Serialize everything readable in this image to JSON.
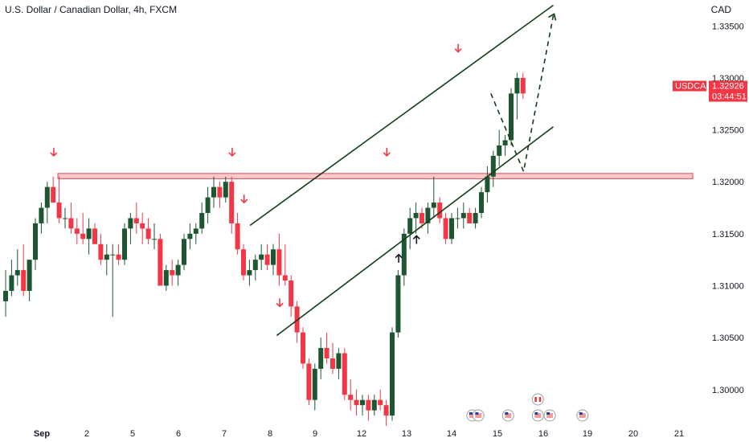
{
  "header": {
    "symbol_title": "U.S. Dollar / Canadian Dollar, 4h, FXCM",
    "currency": "CAD"
  },
  "colors": {
    "up": "#1e5631",
    "down": "#f23645",
    "zone_fill": "#f8c9cd",
    "zone_stroke": "#e0424f",
    "channel": "#0f3d17",
    "axis_text": "#131722"
  },
  "chart_data": {
    "type": "candlestick",
    "symbol": "USDCAD",
    "interval": "4h",
    "price_tag": {
      "label": "USDCAD",
      "price": "1.32926",
      "countdown": "03:44:51"
    },
    "y_axis": {
      "ticks": [
        "1.33500",
        "1.33000",
        "1.32500",
        "1.32000",
        "1.31500",
        "1.31000",
        "1.30500",
        "1.30000"
      ],
      "range": [
        1.2965,
        1.3375
      ]
    },
    "x_axis": {
      "labels": [
        "Sep",
        "2",
        "5",
        "6",
        "7",
        "8",
        "9",
        "12",
        "13",
        "14",
        "15",
        "16",
        "19",
        "20",
        "21"
      ]
    },
    "candles": [
      [
        1.3085,
        1.3115,
        1.307,
        1.3095
      ],
      [
        1.3095,
        1.3125,
        1.309,
        1.311
      ],
      [
        1.311,
        1.3135,
        1.31,
        1.3115
      ],
      [
        1.3115,
        1.314,
        1.309,
        1.3095
      ],
      [
        1.3095,
        1.3125,
        1.3085,
        1.3125
      ],
      [
        1.3125,
        1.3165,
        1.3115,
        1.316
      ],
      [
        1.316,
        1.318,
        1.315,
        1.3175
      ],
      [
        1.3175,
        1.32,
        1.316,
        1.3195
      ],
      [
        1.3195,
        1.3205,
        1.318,
        1.318
      ],
      [
        1.318,
        1.3205,
        1.316,
        1.3165
      ],
      [
        1.3165,
        1.3175,
        1.3155,
        1.3165
      ],
      [
        1.3165,
        1.318,
        1.315,
        1.3155
      ],
      [
        1.3155,
        1.3165,
        1.314,
        1.315
      ],
      [
        1.315,
        1.317,
        1.314,
        1.3145
      ],
      [
        1.3145,
        1.3165,
        1.313,
        1.3155
      ],
      [
        1.3155,
        1.316,
        1.314,
        1.314
      ],
      [
        1.314,
        1.315,
        1.312,
        1.3125
      ],
      [
        1.3125,
        1.314,
        1.311,
        1.313
      ],
      [
        1.313,
        1.314,
        1.307,
        1.313
      ],
      [
        1.313,
        1.314,
        1.312,
        1.3125
      ],
      [
        1.3125,
        1.316,
        1.312,
        1.3155
      ],
      [
        1.3155,
        1.317,
        1.314,
        1.3165
      ],
      [
        1.3165,
        1.318,
        1.315,
        1.316
      ],
      [
        1.316,
        1.317,
        1.314,
        1.3155
      ],
      [
        1.3155,
        1.3165,
        1.314,
        1.3145
      ],
      [
        1.3145,
        1.316,
        1.3135,
        1.3145
      ],
      [
        1.3145,
        1.315,
        1.31,
        1.31
      ],
      [
        1.31,
        1.312,
        1.3095,
        1.3115
      ],
      [
        1.3115,
        1.3125,
        1.31,
        1.311
      ],
      [
        1.311,
        1.3125,
        1.31,
        1.312
      ],
      [
        1.312,
        1.315,
        1.3115,
        1.3145
      ],
      [
        1.3145,
        1.316,
        1.3135,
        1.315
      ],
      [
        1.315,
        1.316,
        1.314,
        1.3155
      ],
      [
        1.3155,
        1.318,
        1.315,
        1.317
      ],
      [
        1.317,
        1.3195,
        1.316,
        1.3185
      ],
      [
        1.3185,
        1.3205,
        1.3175,
        1.3195
      ],
      [
        1.3195,
        1.32,
        1.3175,
        1.3185
      ],
      [
        1.3185,
        1.3205,
        1.318,
        1.32
      ],
      [
        1.32,
        1.3205,
        1.315,
        1.316
      ],
      [
        1.316,
        1.317,
        1.313,
        1.3135
      ],
      [
        1.3135,
        1.314,
        1.3105,
        1.311
      ],
      [
        1.311,
        1.3125,
        1.31,
        1.3115
      ],
      [
        1.3115,
        1.313,
        1.3105,
        1.3125
      ],
      [
        1.3125,
        1.314,
        1.3115,
        1.313
      ],
      [
        1.313,
        1.314,
        1.3115,
        1.312
      ],
      [
        1.312,
        1.314,
        1.311,
        1.3135
      ],
      [
        1.3135,
        1.315,
        1.31,
        1.311
      ],
      [
        1.311,
        1.314,
        1.31,
        1.3105
      ],
      [
        1.3105,
        1.311,
        1.307,
        1.308
      ],
      [
        1.308,
        1.3085,
        1.3045,
        1.3055
      ],
      [
        1.3055,
        1.306,
        1.302,
        1.3025
      ],
      [
        1.3025,
        1.303,
        1.2985,
        1.299
      ],
      [
        1.299,
        1.3025,
        1.298,
        1.302
      ],
      [
        1.302,
        1.305,
        1.301,
        1.304
      ],
      [
        1.304,
        1.3055,
        1.3025,
        1.303
      ],
      [
        1.303,
        1.3045,
        1.3015,
        1.302
      ],
      [
        1.302,
        1.304,
        1.301,
        1.3035
      ],
      [
        1.3035,
        1.304,
        1.299,
        1.2995
      ],
      [
        1.2995,
        1.301,
        1.298,
        1.299
      ],
      [
        1.299,
        1.3,
        1.2975,
        1.2985
      ],
      [
        1.2985,
        1.2995,
        1.2975,
        1.299
      ],
      [
        1.299,
        1.2995,
        1.297,
        1.298
      ],
      [
        1.298,
        1.2995,
        1.2975,
        1.299
      ],
      [
        1.299,
        1.3,
        1.298,
        1.2985
      ],
      [
        1.2985,
        1.299,
        1.2965,
        1.2975
      ],
      [
        1.2975,
        1.306,
        1.297,
        1.3055
      ],
      [
        1.3055,
        1.3115,
        1.305,
        1.311
      ],
      [
        1.311,
        1.3155,
        1.31,
        1.315
      ],
      [
        1.315,
        1.3175,
        1.3135,
        1.3165
      ],
      [
        1.3165,
        1.318,
        1.315,
        1.317
      ],
      [
        1.317,
        1.3175,
        1.3155,
        1.316
      ],
      [
        1.316,
        1.318,
        1.315,
        1.3175
      ],
      [
        1.3175,
        1.3205,
        1.3165,
        1.318
      ],
      [
        1.318,
        1.3185,
        1.316,
        1.3165
      ],
      [
        1.3165,
        1.317,
        1.314,
        1.3145
      ],
      [
        1.3145,
        1.317,
        1.314,
        1.3165
      ],
      [
        1.3165,
        1.3175,
        1.3155,
        1.3165
      ],
      [
        1.3165,
        1.318,
        1.3155,
        1.317
      ],
      [
        1.317,
        1.3175,
        1.316,
        1.316
      ],
      [
        1.316,
        1.3175,
        1.3155,
        1.317
      ],
      [
        1.317,
        1.3195,
        1.3165,
        1.319
      ],
      [
        1.319,
        1.3215,
        1.318,
        1.3205
      ],
      [
        1.3205,
        1.323,
        1.3195,
        1.3225
      ],
      [
        1.3225,
        1.325,
        1.3215,
        1.3235
      ],
      [
        1.3235,
        1.3245,
        1.3225,
        1.324
      ],
      [
        1.324,
        1.329,
        1.3235,
        1.3285
      ],
      [
        1.3285,
        1.3305,
        1.326,
        1.33
      ],
      [
        1.33,
        1.3305,
        1.328,
        1.3285
      ]
    ],
    "horizontal_zone": {
      "low": 1.3203,
      "high": 1.3208
    },
    "channel_upper": [
      [
        41.5,
        1.3158
      ],
      [
        92.5,
        1.337
      ]
    ],
    "channel_lower": [
      [
        46,
        1.3052
      ],
      [
        92.5,
        1.3253
      ]
    ],
    "projection_path": [
      [
        82,
        1.3285
      ],
      [
        87.5,
        1.321
      ],
      [
        92.5,
        1.336
      ]
    ],
    "annotations": {
      "down_arrows": [
        [
          8.5,
          1.3225
        ],
        [
          38.5,
          1.3225
        ],
        [
          40.5,
          1.318
        ],
        [
          46.5,
          1.308
        ],
        [
          64.5,
          1.3225
        ],
        [
          76.5,
          1.3325
        ]
      ],
      "up_arrows": [
        [
          66.5,
          1.313
        ],
        [
          69.5,
          1.3148
        ]
      ]
    },
    "event_markers": [
      [
        78.5,
        "us"
      ],
      [
        79.5,
        "us"
      ],
      [
        84.5,
        "us"
      ],
      [
        89.5,
        "ca"
      ],
      [
        89.5,
        "us"
      ],
      [
        91.5,
        "us"
      ],
      [
        97,
        "us"
      ]
    ]
  }
}
